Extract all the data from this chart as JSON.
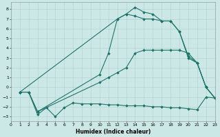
{
  "bg_color": "#cce8e6",
  "grid_color": "#aacfcc",
  "line_color": "#1f7268",
  "xlabel": "Humidex (Indice chaleur)",
  "xlim": [
    0,
    23
  ],
  "ylim": [
    -3.5,
    8.7
  ],
  "xticks": [
    0,
    1,
    2,
    3,
    4,
    5,
    6,
    7,
    8,
    9,
    10,
    11,
    12,
    13,
    14,
    15,
    16,
    17,
    18,
    19,
    20,
    21,
    22,
    23
  ],
  "yticks": [
    -3,
    -2,
    -1,
    0,
    1,
    2,
    3,
    4,
    5,
    6,
    7,
    8
  ],
  "curves": [
    {
      "x": [
        1,
        2,
        3,
        4,
        5,
        6,
        7,
        8,
        9,
        10,
        11,
        12,
        13,
        14,
        15,
        16,
        17,
        18,
        19,
        20,
        21,
        22,
        23
      ],
      "y": [
        -0.5,
        -0.5,
        -2.8,
        -2.1,
        -3.0,
        -2.1,
        -1.6,
        -1.7,
        -1.7,
        -1.7,
        -1.8,
        -1.8,
        -1.9,
        -1.9,
        -1.9,
        -2.0,
        -2.0,
        -2.1,
        -2.1,
        -2.2,
        -2.3,
        -1.0,
        -1.1
      ]
    },
    {
      "x": [
        1,
        2,
        3,
        10,
        11,
        12,
        13,
        14,
        15,
        16,
        17,
        18,
        19,
        20,
        21,
        22,
        23
      ],
      "y": [
        -0.5,
        -0.5,
        -2.5,
        0.5,
        1.0,
        1.5,
        2.0,
        3.5,
        3.8,
        3.8,
        3.8,
        3.8,
        3.8,
        3.5,
        2.5,
        0.0,
        -1.1
      ]
    },
    {
      "x": [
        1,
        2,
        3,
        10,
        11,
        12,
        13,
        14,
        15,
        16,
        17,
        18,
        19,
        20,
        21,
        22,
        23
      ],
      "y": [
        -0.5,
        -0.5,
        -2.5,
        1.3,
        3.5,
        7.0,
        7.5,
        7.3,
        7.0,
        7.0,
        6.8,
        6.8,
        5.7,
        3.2,
        2.5,
        0.0,
        -1.1
      ]
    },
    {
      "x": [
        1,
        12,
        13,
        14,
        15,
        16,
        17,
        18,
        19,
        20,
        21,
        22,
        23
      ],
      "y": [
        -0.5,
        7.0,
        7.5,
        8.2,
        7.7,
        7.5,
        6.8,
        6.8,
        5.7,
        3.0,
        2.5,
        0.0,
        -1.1
      ]
    }
  ]
}
